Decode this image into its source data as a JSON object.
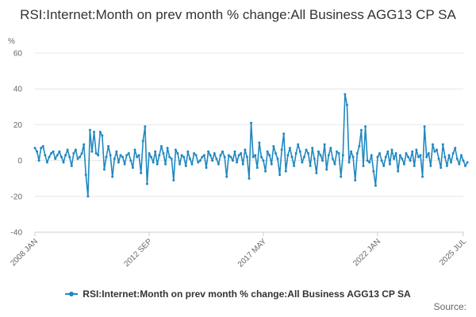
{
  "chart_data": {
    "type": "line",
    "title": "RSI:Internet:Month on prev month % change:All Business AGG13 CP SA",
    "ylabel": "%",
    "xlabel": "",
    "ylim": [
      -40,
      60
    ],
    "yticks": [
      "60",
      "40",
      "20",
      "0",
      "-20",
      "-40"
    ],
    "xlim": [
      "2008-01",
      "2025-07"
    ],
    "xticks": [
      {
        "label": "2008 JAN",
        "date": "2008-01"
      },
      {
        "label": "2012 SEP",
        "date": "2012-09"
      },
      {
        "label": "2017 MAY",
        "date": "2017-05"
      },
      {
        "label": "2022 JAN",
        "date": "2022-01"
      },
      {
        "label": "2025 JUL",
        "date": "2025-07"
      }
    ],
    "grid": "horizontal",
    "legend_position": "bottom",
    "series_color": "#1f88c0",
    "series": [
      {
        "name": "RSI:Internet:Month on prev month % change:All Business AGG13 CP SA",
        "start": "2008-01",
        "frequency": "monthly",
        "values": [
          7,
          5,
          0,
          7,
          8,
          3,
          -1,
          2,
          4,
          5,
          1,
          3,
          5,
          2,
          -1,
          3,
          6,
          2,
          -3,
          4,
          6,
          1,
          2,
          4,
          9,
          -8,
          -20,
          17,
          5,
          16,
          4,
          3,
          16,
          14,
          -5,
          2,
          8,
          3,
          -9,
          1,
          5,
          -1,
          3,
          2,
          -2,
          3,
          4,
          0,
          -4,
          6,
          2,
          3,
          -7,
          11,
          19,
          -13,
          4,
          2,
          -1,
          5,
          -2,
          3,
          8,
          4,
          -2,
          7,
          2,
          1,
          -11,
          6,
          4,
          -2,
          3,
          2,
          -3,
          5,
          1,
          -2,
          4,
          3,
          -1,
          0,
          2,
          3,
          -4,
          5,
          3,
          0,
          4,
          1,
          -2,
          3,
          5,
          2,
          -9,
          3,
          2,
          0,
          5,
          -1,
          3,
          4,
          -2,
          6,
          2,
          -10,
          21,
          2,
          3,
          -4,
          10,
          2,
          0,
          -6,
          5,
          3,
          -2,
          8,
          4,
          1,
          -8,
          6,
          15,
          -6,
          3,
          7,
          2,
          -3,
          4,
          9,
          5,
          -1,
          2,
          6,
          4,
          -3,
          7,
          1,
          -7,
          5,
          3,
          0,
          9,
          -5,
          3,
          7,
          1,
          -2,
          5,
          4,
          -9,
          3,
          37,
          31,
          -1,
          5,
          2,
          -11,
          4,
          8,
          17,
          -3,
          19,
          0,
          -1,
          3,
          -6,
          -14,
          2,
          4,
          0,
          -3,
          2,
          5,
          -2,
          6,
          1,
          4,
          -6,
          3,
          1,
          -2,
          4,
          2,
          0,
          5,
          -3,
          6,
          2,
          3,
          -9,
          19,
          2,
          4,
          -3,
          9,
          5,
          6,
          1,
          -4,
          9,
          2,
          -3,
          3,
          -1,
          4,
          7,
          1,
          -2,
          3,
          0,
          -3,
          -1
        ]
      }
    ]
  },
  "source_label": "Source:"
}
